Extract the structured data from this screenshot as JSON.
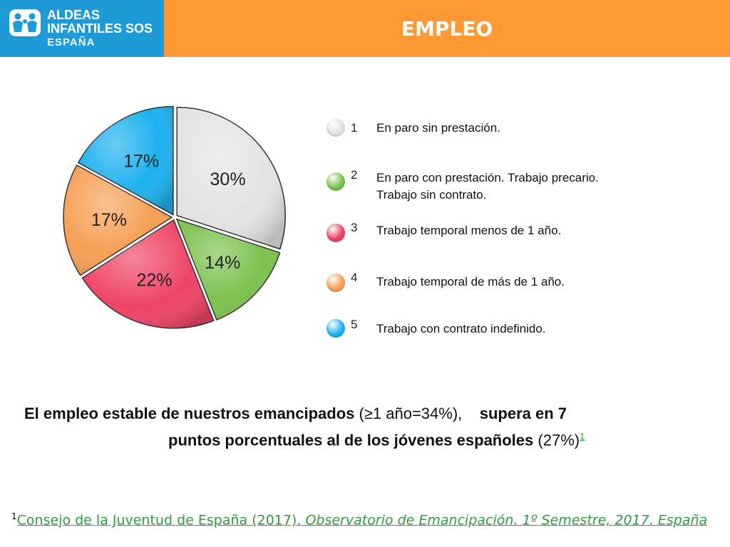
{
  "header": {
    "logo_lines": [
      "ALDEAS",
      "INFANTILES SOS",
      "ESPAÑA"
    ],
    "title": "EMPLEO",
    "colors": {
      "header_bg": "#FF9933",
      "logo_bg": "#1E9BD7"
    }
  },
  "chart_data": {
    "type": "pie",
    "slices": [
      {
        "key": "1",
        "value": 30,
        "label": "30%",
        "color": "#E3E3E3"
      },
      {
        "key": "2",
        "value": 14,
        "label": "14%",
        "color": "#7CC24E"
      },
      {
        "key": "3",
        "value": 22,
        "label": "22%",
        "color": "#EE4466"
      },
      {
        "key": "4",
        "value": 17,
        "label": "17%",
        "color": "#F6A055"
      },
      {
        "key": "5",
        "value": 17,
        "label": "17%",
        "color": "#1EB1F0"
      }
    ],
    "legend": [
      {
        "num": "1",
        "text": "En paro sin prestación.",
        "color": "#E3E3E3"
      },
      {
        "num": "2",
        "text": "En paro con prestación. Trabajo precario. Trabajo sin contrato.",
        "color": "#7CC24E"
      },
      {
        "num": "3",
        "text": "Trabajo temporal menos de 1 año.",
        "color": "#EE4466"
      },
      {
        "num": "4",
        "text": "Trabajo temporal de más de 1 año.",
        "color": "#F6A055"
      },
      {
        "num": "5",
        "text": "Trabajo con contrato indefinido.",
        "color": "#1EB1F0"
      }
    ]
  },
  "statement": {
    "part1": "El empleo estable de nuestros emancipados",
    "part2": "(≥1 año=34%),",
    "part3": "supera en 7",
    "part4": "puntos porcentuales al de los jóvenes españoles",
    "part5": "(27%)",
    "ref_mark": "1"
  },
  "footnote": {
    "mark": "1",
    "text_a": "Consejo de la Juventud de España (2017). ",
    "text_b": "Observatorio de Emancipación. 1º Semestre, 2017. España"
  }
}
